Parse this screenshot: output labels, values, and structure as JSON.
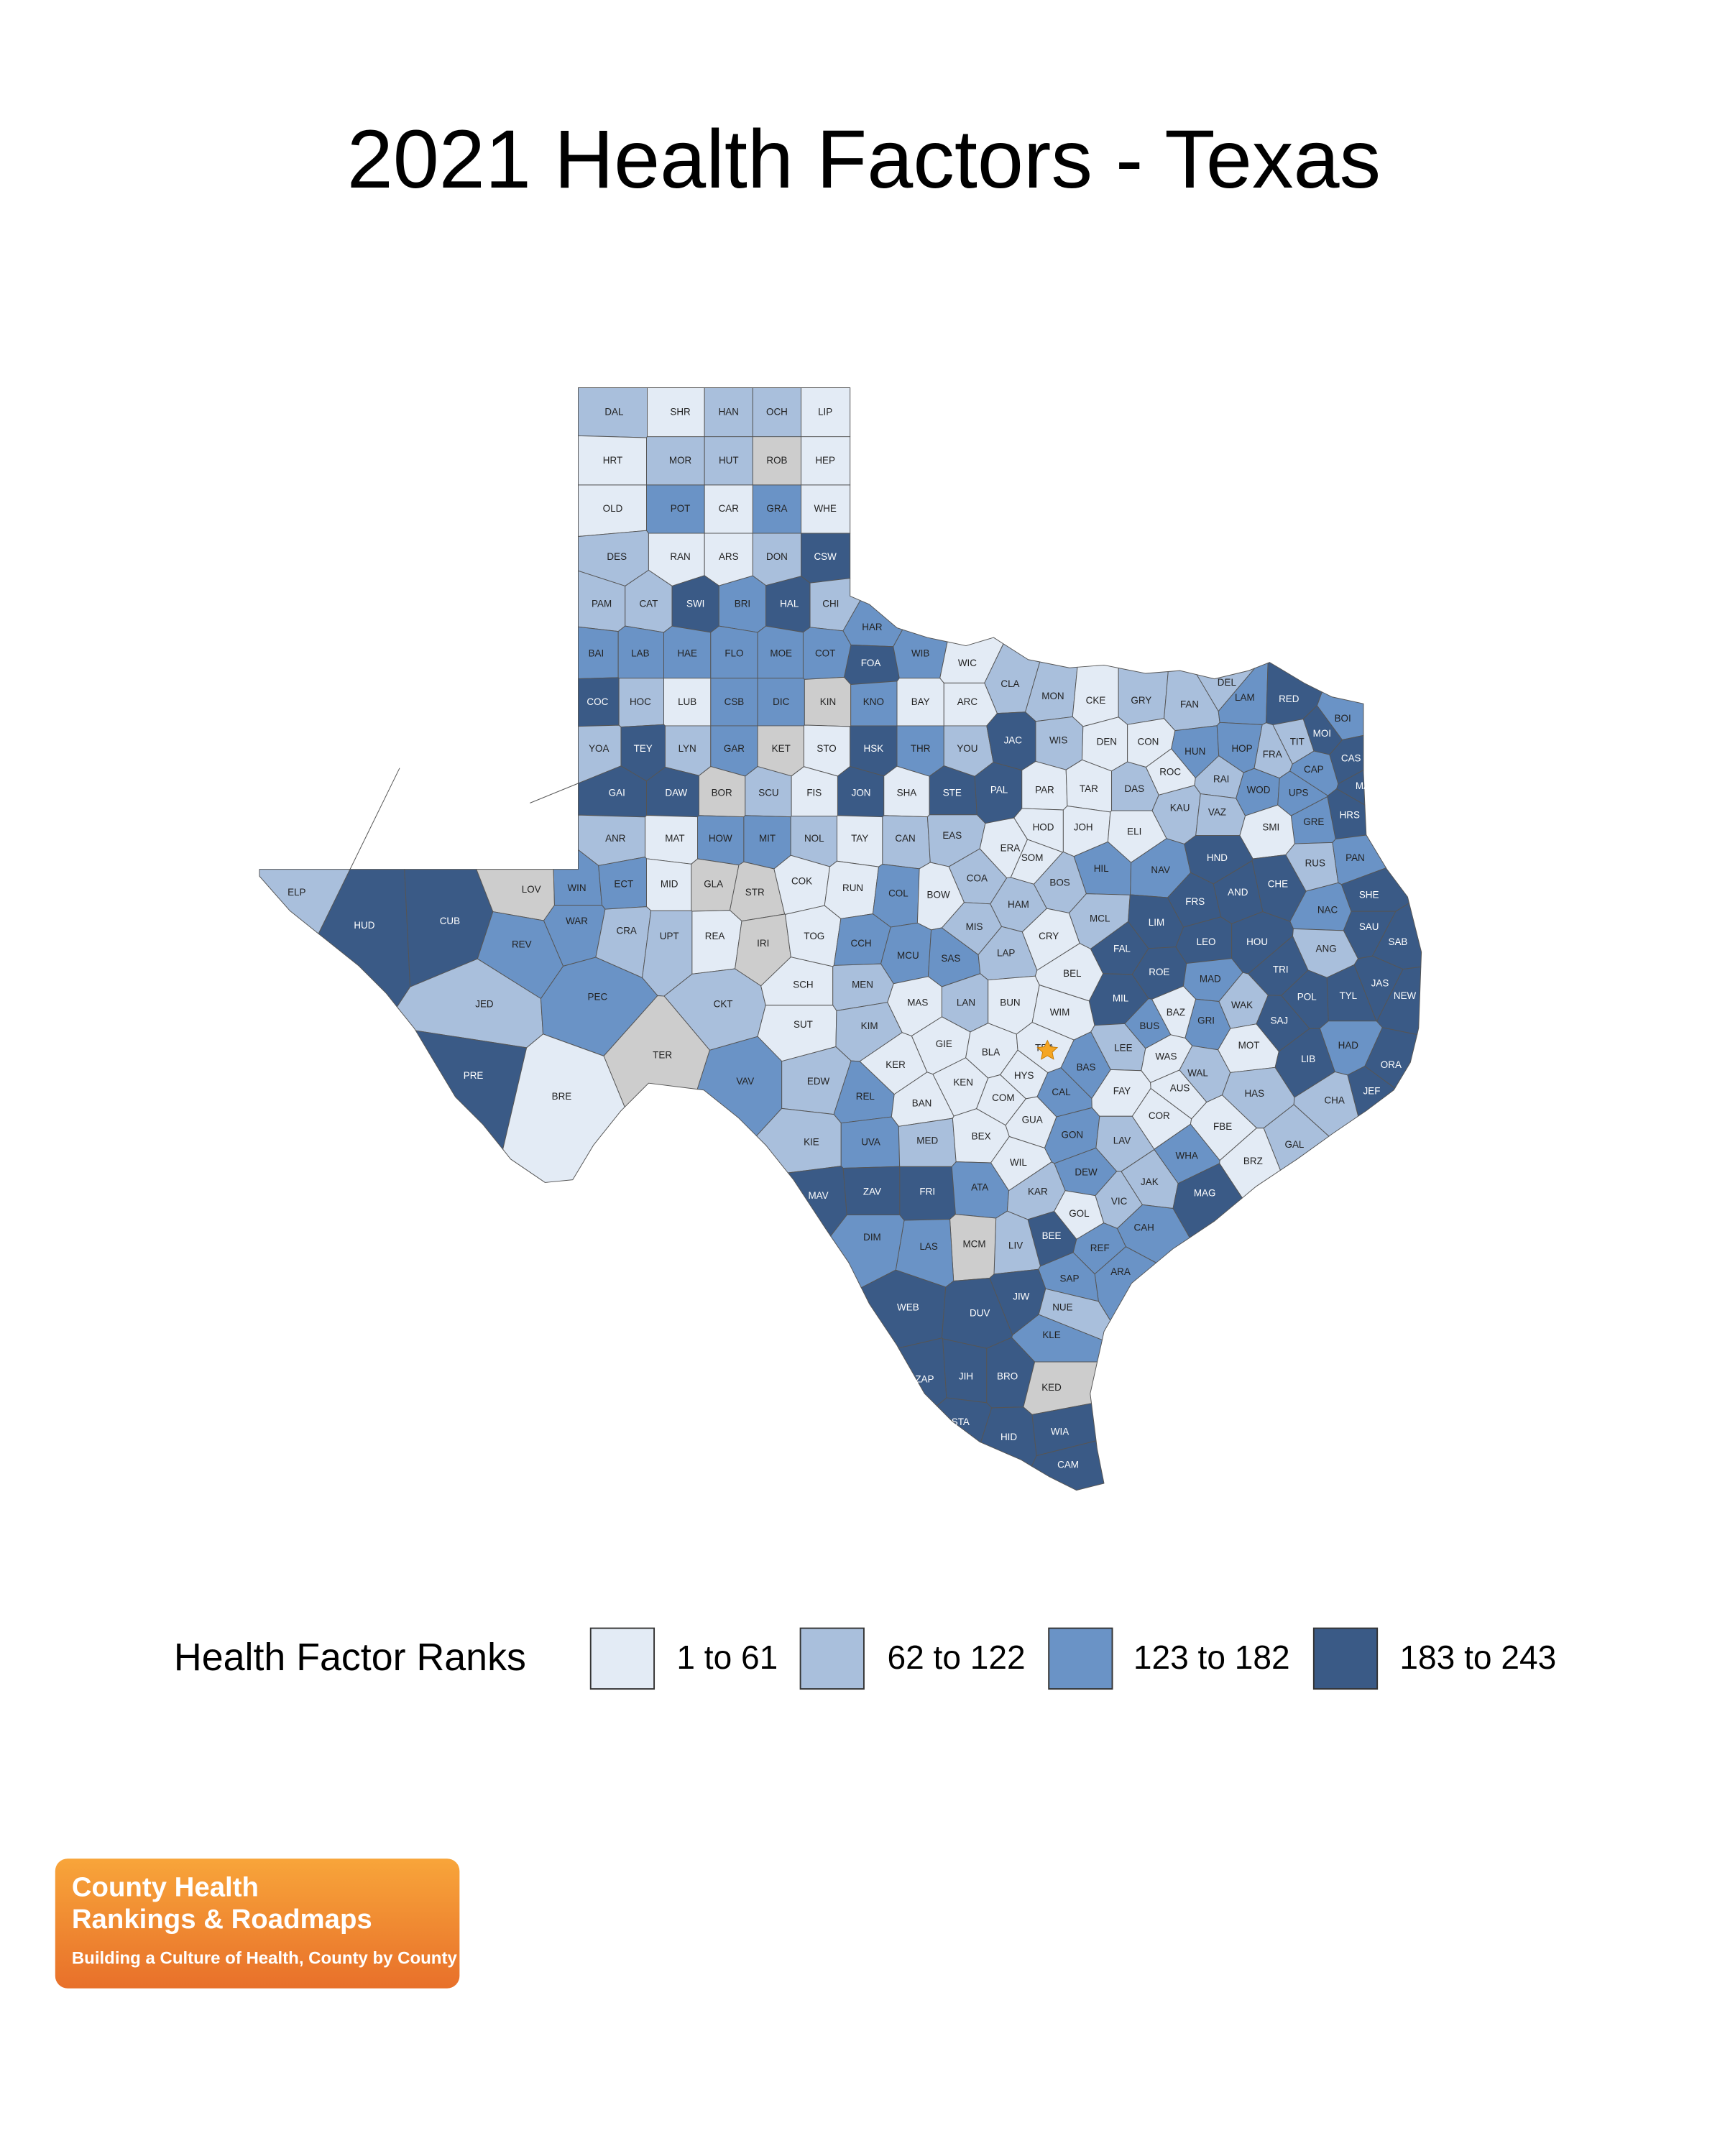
{
  "title": "2021 Health Factors - Texas",
  "counties": [
    {
      "abbr": "DAL",
      "quartile": 2
    },
    {
      "abbr": "SHR",
      "quartile": 1
    },
    {
      "abbr": "HAN",
      "quartile": 2
    },
    {
      "abbr": "OCH",
      "quartile": 2
    },
    {
      "abbr": "LIP",
      "quartile": 1
    },
    {
      "abbr": "HRT",
      "quartile": 1
    },
    {
      "abbr": "MOR",
      "quartile": 2
    },
    {
      "abbr": "HUT",
      "quartile": 2
    },
    {
      "abbr": "ROB",
      "quartile": null
    },
    {
      "abbr": "HEP",
      "quartile": 1
    },
    {
      "abbr": "OLD",
      "quartile": 1
    },
    {
      "abbr": "POT",
      "quartile": 3
    },
    {
      "abbr": "CAR",
      "quartile": 1
    },
    {
      "abbr": "GRA",
      "quartile": 3
    },
    {
      "abbr": "WHE",
      "quartile": 1
    },
    {
      "abbr": "DES",
      "quartile": 2
    },
    {
      "abbr": "RAN",
      "quartile": 1
    },
    {
      "abbr": "ARS",
      "quartile": 1
    },
    {
      "abbr": "DON",
      "quartile": 2
    },
    {
      "abbr": "CSW",
      "quartile": 4
    },
    {
      "abbr": "PAM",
      "quartile": 2
    },
    {
      "abbr": "CAT",
      "quartile": 2
    },
    {
      "abbr": "SWI",
      "quartile": 4
    },
    {
      "abbr": "BRI",
      "quartile": 3
    },
    {
      "abbr": "HAL",
      "quartile": 4
    },
    {
      "abbr": "CHI",
      "quartile": 2
    },
    {
      "abbr": "HAR",
      "quartile": 3
    },
    {
      "abbr": "FOA",
      "quartile": 4
    },
    {
      "abbr": "WIB",
      "quartile": 3
    },
    {
      "abbr": "WIC",
      "quartile": 1
    },
    {
      "abbr": "CLA",
      "quartile": 2
    },
    {
      "abbr": "MON",
      "quartile": 2
    },
    {
      "abbr": "CKE",
      "quartile": 1
    },
    {
      "abbr": "GRY",
      "quartile": 2
    },
    {
      "abbr": "FAN",
      "quartile": 2
    },
    {
      "abbr": "LAM",
      "quartile": 3
    },
    {
      "abbr": "RED",
      "quartile": 4
    },
    {
      "abbr": "BOI",
      "quartile": 3
    },
    {
      "abbr": "ROC",
      "quartile": 1
    },
    {
      "abbr": "RAI",
      "quartile": 2
    },
    {
      "abbr": "DEL",
      "quartile": 2
    },
    {
      "abbr": "FRA",
      "quartile": 2
    },
    {
      "abbr": "BAI",
      "quartile": 3
    },
    {
      "abbr": "LAB",
      "quartile": 3
    },
    {
      "abbr": "HAE",
      "quartile": 3
    },
    {
      "abbr": "FLO",
      "quartile": 3
    },
    {
      "abbr": "MOE",
      "quartile": 3
    },
    {
      "abbr": "COT",
      "quartile": 3
    },
    {
      "abbr": "COC",
      "quartile": 4
    },
    {
      "abbr": "HOC",
      "quartile": 2
    },
    {
      "abbr": "LUB",
      "quartile": 1
    },
    {
      "abbr": "CSB",
      "quartile": 3
    },
    {
      "abbr": "DIC",
      "quartile": 3
    },
    {
      "abbr": "KIN",
      "quartile": null
    },
    {
      "abbr": "KNO",
      "quartile": 3
    },
    {
      "abbr": "BAY",
      "quartile": 1
    },
    {
      "abbr": "ARC",
      "quartile": 1
    },
    {
      "abbr": "YOA",
      "quartile": 2
    },
    {
      "abbr": "TEY",
      "quartile": 4
    },
    {
      "abbr": "LYN",
      "quartile": 2
    },
    {
      "abbr": "GAR",
      "quartile": 3
    },
    {
      "abbr": "KET",
      "quartile": null
    },
    {
      "abbr": "STO",
      "quartile": 1
    },
    {
      "abbr": "HSK",
      "quartile": 4
    },
    {
      "abbr": "THR",
      "quartile": 3
    },
    {
      "abbr": "YOU",
      "quartile": 2
    },
    {
      "abbr": "JAC",
      "quartile": 4
    },
    {
      "abbr": "WIS",
      "quartile": 2
    },
    {
      "abbr": "DEN",
      "quartile": 1
    },
    {
      "abbr": "CON",
      "quartile": 1
    },
    {
      "abbr": "HUN",
      "quartile": 3
    },
    {
      "abbr": "HOP",
      "quartile": 3
    },
    {
      "abbr": "TIT",
      "quartile": 2
    },
    {
      "abbr": "CAS",
      "quartile": 4
    },
    {
      "abbr": "MOI",
      "quartile": 4
    },
    {
      "abbr": "CAP",
      "quartile": 3
    },
    {
      "abbr": "MAR",
      "quartile": 4
    },
    {
      "abbr": "GAI",
      "quartile": 4
    },
    {
      "abbr": "DAW",
      "quartile": 4
    },
    {
      "abbr": "BOR",
      "quartile": null
    },
    {
      "abbr": "SCU",
      "quartile": 2
    },
    {
      "abbr": "FIS",
      "quartile": 1
    },
    {
      "abbr": "JON",
      "quartile": 4
    },
    {
      "abbr": "SHA",
      "quartile": 1
    },
    {
      "abbr": "STE",
      "quartile": 4
    },
    {
      "abbr": "PAL",
      "quartile": 4
    },
    {
      "abbr": "PAR",
      "quartile": 1
    },
    {
      "abbr": "TAR",
      "quartile": 1
    },
    {
      "abbr": "DAS",
      "quartile": 2
    },
    {
      "abbr": "KAU",
      "quartile": 2
    },
    {
      "abbr": "VAZ",
      "quartile": 2
    },
    {
      "abbr": "WOD",
      "quartile": 3
    },
    {
      "abbr": "UPS",
      "quartile": 3
    },
    {
      "abbr": "HRS",
      "quartile": 4
    },
    {
      "abbr": "GRE",
      "quartile": 3
    },
    {
      "abbr": "SMI",
      "quartile": 1
    },
    {
      "abbr": "SOM",
      "quartile": 1
    },
    {
      "abbr": "ANR",
      "quartile": 2
    },
    {
      "abbr": "MAT",
      "quartile": 1
    },
    {
      "abbr": "HOW",
      "quartile": 3
    },
    {
      "abbr": "MIT",
      "quartile": 3
    },
    {
      "abbr": "NOL",
      "quartile": 2
    },
    {
      "abbr": "TAY",
      "quartile": 1
    },
    {
      "abbr": "CAN",
      "quartile": 2
    },
    {
      "abbr": "EAS",
      "quartile": 2
    },
    {
      "abbr": "ERA",
      "quartile": 1
    },
    {
      "abbr": "HOD",
      "quartile": 1
    },
    {
      "abbr": "JOH",
      "quartile": 1
    },
    {
      "abbr": "ELI",
      "quartile": 1
    },
    {
      "abbr": "ELP",
      "quartile": 2
    },
    {
      "abbr": "HUD",
      "quartile": 4
    },
    {
      "abbr": "CUB",
      "quartile": 4
    },
    {
      "abbr": "LOV",
      "quartile": null
    },
    {
      "abbr": "WIN",
      "quartile": 3
    },
    {
      "abbr": "ECT",
      "quartile": 3
    },
    {
      "abbr": "MID",
      "quartile": 1
    },
    {
      "abbr": "GLA",
      "quartile": null
    },
    {
      "abbr": "STR",
      "quartile": null
    },
    {
      "abbr": "COK",
      "quartile": 1
    },
    {
      "abbr": "RUN",
      "quartile": 1
    },
    {
      "abbr": "COL",
      "quartile": 3
    },
    {
      "abbr": "BOW",
      "quartile": 1
    },
    {
      "abbr": "COA",
      "quartile": 2
    },
    {
      "abbr": "HAM",
      "quartile": 2
    },
    {
      "abbr": "BOS",
      "quartile": 2
    },
    {
      "abbr": "HIL",
      "quartile": 3
    },
    {
      "abbr": "NAV",
      "quartile": 3
    },
    {
      "abbr": "HND",
      "quartile": 4
    },
    {
      "abbr": "CHE",
      "quartile": 4
    },
    {
      "abbr": "RUS",
      "quartile": 2
    },
    {
      "abbr": "PAN",
      "quartile": 3
    },
    {
      "abbr": "WAR",
      "quartile": 3
    },
    {
      "abbr": "REV",
      "quartile": 3
    },
    {
      "abbr": "CRA",
      "quartile": 2
    },
    {
      "abbr": "UPT",
      "quartile": 2
    },
    {
      "abbr": "REA",
      "quartile": 1
    },
    {
      "abbr": "IRI",
      "quartile": null
    },
    {
      "abbr": "TOG",
      "quartile": 1
    },
    {
      "abbr": "CCH",
      "quartile": 3
    },
    {
      "abbr": "MCU",
      "quartile": 3
    },
    {
      "abbr": "SAS",
      "quartile": 3
    },
    {
      "abbr": "MIS",
      "quartile": 2
    },
    {
      "abbr": "LAP",
      "quartile": 2
    },
    {
      "abbr": "CRY",
      "quartile": 1
    },
    {
      "abbr": "MCL",
      "quartile": 2
    },
    {
      "abbr": "LIM",
      "quartile": 4
    },
    {
      "abbr": "FRS",
      "quartile": 4
    },
    {
      "abbr": "AND",
      "quartile": 4
    },
    {
      "abbr": "NAC",
      "quartile": 3
    },
    {
      "abbr": "SHE",
      "quartile": 4
    },
    {
      "abbr": "SAU",
      "quartile": 4
    },
    {
      "abbr": "SAB",
      "quartile": 4
    },
    {
      "abbr": "FAL",
      "quartile": 4
    },
    {
      "abbr": "LEO",
      "quartile": 4
    },
    {
      "abbr": "HOU",
      "quartile": 4
    },
    {
      "abbr": "ANG",
      "quartile": 2
    },
    {
      "abbr": "TRI",
      "quartile": 4
    },
    {
      "abbr": "ROE",
      "quartile": 4
    },
    {
      "abbr": "MAD",
      "quartile": 3
    },
    {
      "abbr": "NEW",
      "quartile": 4
    },
    {
      "abbr": "JAS",
      "quartile": 4
    },
    {
      "abbr": "TYL",
      "quartile": 4
    },
    {
      "abbr": "POL",
      "quartile": 4
    },
    {
      "abbr": "JED",
      "quartile": 2
    },
    {
      "abbr": "PEC",
      "quartile": 3
    },
    {
      "abbr": "CKT",
      "quartile": 2
    },
    {
      "abbr": "SCH",
      "quartile": 1
    },
    {
      "abbr": "MEN",
      "quartile": 2
    },
    {
      "abbr": "MAS",
      "quartile": 1
    },
    {
      "abbr": "LAN",
      "quartile": 2
    },
    {
      "abbr": "BUN",
      "quartile": 1
    },
    {
      "abbr": "MIL",
      "quartile": 4
    },
    {
      "abbr": "WIM",
      "quartile": 1
    },
    {
      "abbr": "BEL",
      "quartile": 1
    },
    {
      "abbr": "WAK",
      "quartile": 2
    },
    {
      "abbr": "BAZ",
      "quartile": 1
    },
    {
      "abbr": "GRI",
      "quartile": 3
    },
    {
      "abbr": "SAJ",
      "quartile": 4
    },
    {
      "abbr": "SUT",
      "quartile": 1
    },
    {
      "abbr": "KIM",
      "quartile": 2
    },
    {
      "abbr": "GIE",
      "quartile": 1
    },
    {
      "abbr": "BUS",
      "quartile": 3
    },
    {
      "abbr": "HAD",
      "quartile": 3
    },
    {
      "abbr": "MOT",
      "quartile": 1
    },
    {
      "abbr": "LIB",
      "quartile": 4
    },
    {
      "abbr": "ORA",
      "quartile": 4
    },
    {
      "abbr": "TER",
      "quartile": null
    },
    {
      "abbr": "PRE",
      "quartile": 4
    },
    {
      "abbr": "BRE",
      "quartile": 1
    },
    {
      "abbr": "VAV",
      "quartile": 3
    },
    {
      "abbr": "EDW",
      "quartile": 2
    },
    {
      "abbr": "KER",
      "quartile": 1
    },
    {
      "abbr": "BLA",
      "quartile": 1
    },
    {
      "abbr": "TRA",
      "quartile": 1
    },
    {
      "abbr": "HYS",
      "quartile": 1
    },
    {
      "abbr": "BAS",
      "quartile": 3
    },
    {
      "abbr": "LEE",
      "quartile": 2
    },
    {
      "abbr": "WAS",
      "quartile": 1
    },
    {
      "abbr": "REL",
      "quartile": 3
    },
    {
      "abbr": "BAN",
      "quartile": 1
    },
    {
      "abbr": "KEN",
      "quartile": 1
    },
    {
      "abbr": "COM",
      "quartile": 1
    },
    {
      "abbr": "CAL",
      "quartile": 3
    },
    {
      "abbr": "FAY",
      "quartile": 1
    },
    {
      "abbr": "AUS",
      "quartile": 1
    },
    {
      "abbr": "HAS",
      "quartile": 2
    },
    {
      "abbr": "JEF",
      "quartile": 4
    },
    {
      "abbr": "CHA",
      "quartile": 2
    },
    {
      "abbr": "KIE",
      "quartile": 2
    },
    {
      "abbr": "UVA",
      "quartile": 3
    },
    {
      "abbr": "MED",
      "quartile": 2
    },
    {
      "abbr": "BEX",
      "quartile": 1
    },
    {
      "abbr": "GUA",
      "quartile": 1
    },
    {
      "abbr": "GON",
      "quartile": 3
    },
    {
      "abbr": "LAV",
      "quartile": 2
    },
    {
      "abbr": "COR",
      "quartile": 1
    },
    {
      "abbr": "FBE",
      "quartile": 1
    },
    {
      "abbr": "GAL",
      "quartile": 2
    },
    {
      "abbr": "WAL",
      "quartile": 2
    },
    {
      "abbr": "WHA",
      "quartile": 3
    },
    {
      "abbr": "BRZ",
      "quartile": 1
    },
    {
      "abbr": "WIL",
      "quartile": 1
    },
    {
      "abbr": "DEW",
      "quartile": 3
    },
    {
      "abbr": "JAK",
      "quartile": 2
    },
    {
      "abbr": "MAG",
      "quartile": 4
    },
    {
      "abbr": "MAV",
      "quartile": 4
    },
    {
      "abbr": "ZAV",
      "quartile": 4
    },
    {
      "abbr": "FRI",
      "quartile": 4
    },
    {
      "abbr": "ATA",
      "quartile": 3
    },
    {
      "abbr": "KAR",
      "quartile": 2
    },
    {
      "abbr": "VIC",
      "quartile": 2
    },
    {
      "abbr": "CAH",
      "quartile": 3
    },
    {
      "abbr": "GOL",
      "quartile": 1
    },
    {
      "abbr": "BEE",
      "quartile": 4
    },
    {
      "abbr": "REF",
      "quartile": 3
    },
    {
      "abbr": "LIV",
      "quartile": 2
    },
    {
      "abbr": "MCM",
      "quartile": null
    },
    {
      "abbr": "LAS",
      "quartile": 3
    },
    {
      "abbr": "DIM",
      "quartile": 3
    },
    {
      "abbr": "ARA",
      "quartile": 3
    },
    {
      "abbr": "SAP",
      "quartile": 3
    },
    {
      "abbr": "JIW",
      "quartile": 4
    },
    {
      "abbr": "NUE",
      "quartile": 2
    },
    {
      "abbr": "WEB",
      "quartile": 4
    },
    {
      "abbr": "DUV",
      "quartile": 4
    },
    {
      "abbr": "KLE",
      "quartile": 3
    },
    {
      "abbr": "ZAP",
      "quartile": 4
    },
    {
      "abbr": "JIH",
      "quartile": 4
    },
    {
      "abbr": "BRO",
      "quartile": 4
    },
    {
      "abbr": "KED",
      "quartile": null
    },
    {
      "abbr": "STA",
      "quartile": 4
    },
    {
      "abbr": "HID",
      "quartile": 4
    },
    {
      "abbr": "WIA",
      "quartile": 4
    },
    {
      "abbr": "CAM",
      "quartile": 4
    }
  ],
  "legend": {
    "title": "Health Factor Ranks",
    "items": [
      "1 to 61",
      "62 to 122",
      "123 to 182",
      "183 to 243"
    ]
  },
  "logo": {
    "line1": "County Health",
    "line2": "Rankings & Roadmaps",
    "tagline": "Building a Culture of Health, County by County"
  }
}
